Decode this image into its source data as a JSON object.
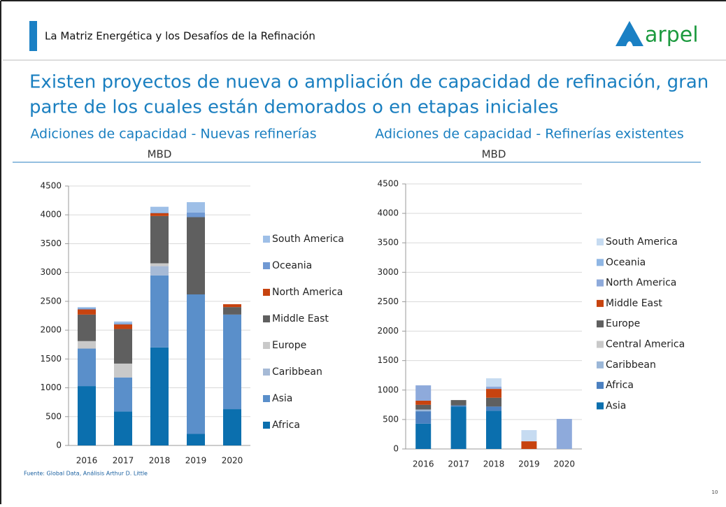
{
  "header": {
    "title": "La Matriz Energética y los Desafíos de la Refinación",
    "logo": "arpel"
  },
  "headline": [
    "Existen proyectos de nueva o ampliación de capacidad de refinación, gran",
    "parte de los cuales están demorados o en etapas iniciales"
  ],
  "source": "Fuente: Global Data, Análisis Arthur D. Little",
  "page_number": "10",
  "chart_data": [
    {
      "type": "bar",
      "stacked": true,
      "title": "Adiciones de capacidad - Nuevas refinerías",
      "subtitle": "MBD",
      "categories": [
        "2016",
        "2017",
        "2018",
        "2019",
        "2020"
      ],
      "ylim": [
        0,
        4500
      ],
      "yticks": [
        0,
        500,
        1000,
        1500,
        2000,
        2500,
        3000,
        3500,
        4000,
        4500
      ],
      "legend": "right",
      "series": [
        {
          "name": "Africa",
          "color": "#0b6fae",
          "values": [
            1030,
            590,
            1700,
            200,
            630
          ]
        },
        {
          "name": "Asia",
          "color": "#5a8fca",
          "values": [
            650,
            590,
            1250,
            2420,
            1640
          ]
        },
        {
          "name": "Caribbean",
          "color": "#a6bad6",
          "values": [
            0,
            0,
            160,
            0,
            0
          ]
        },
        {
          "name": "Europe",
          "color": "#c9c9c9",
          "values": [
            130,
            240,
            50,
            0,
            0
          ]
        },
        {
          "name": "Middle East",
          "color": "#5f5f5f",
          "values": [
            460,
            600,
            820,
            1340,
            130
          ]
        },
        {
          "name": "North America",
          "color": "#c7430f",
          "values": [
            90,
            80,
            50,
            0,
            50
          ]
        },
        {
          "name": "Oceania",
          "color": "#7099d3",
          "values": [
            20,
            20,
            10,
            80,
            0
          ]
        },
        {
          "name": "South America",
          "color": "#9ebfe7",
          "values": [
            20,
            30,
            100,
            180,
            0
          ]
        }
      ]
    },
    {
      "type": "bar",
      "stacked": true,
      "title": "Adiciones de capacidad - Refinerías existentes",
      "subtitle": "MBD",
      "categories": [
        "2016",
        "2017",
        "2018",
        "2019",
        "2020"
      ],
      "ylim": [
        0,
        4500
      ],
      "yticks": [
        0,
        500,
        1000,
        1500,
        2000,
        2500,
        3000,
        3500,
        4000,
        4500
      ],
      "legend": "right",
      "series": [
        {
          "name": "Asia",
          "color": "#0b6fae",
          "values": [
            430,
            720,
            650,
            0,
            0
          ]
        },
        {
          "name": "Africa",
          "color": "#4b80c0",
          "values": [
            210,
            20,
            70,
            0,
            0
          ]
        },
        {
          "name": "Caribbean",
          "color": "#9bb7d8",
          "values": [
            30,
            0,
            0,
            0,
            0
          ]
        },
        {
          "name": "Central America",
          "color": "#c9c9c9",
          "values": [
            0,
            0,
            0,
            0,
            0
          ]
        },
        {
          "name": "Europe",
          "color": "#5f5f5f",
          "values": [
            80,
            90,
            150,
            0,
            0
          ]
        },
        {
          "name": "Middle East",
          "color": "#c7430f",
          "values": [
            70,
            0,
            150,
            130,
            0
          ]
        },
        {
          "name": "North America",
          "color": "#8eaadb",
          "values": [
            260,
            0,
            40,
            0,
            510
          ]
        },
        {
          "name": "Oceania",
          "color": "#8fb6e4",
          "values": [
            0,
            0,
            0,
            0,
            0
          ]
        },
        {
          "name": "South America",
          "color": "#c6dbf1",
          "values": [
            0,
            0,
            140,
            190,
            0
          ]
        }
      ]
    }
  ]
}
